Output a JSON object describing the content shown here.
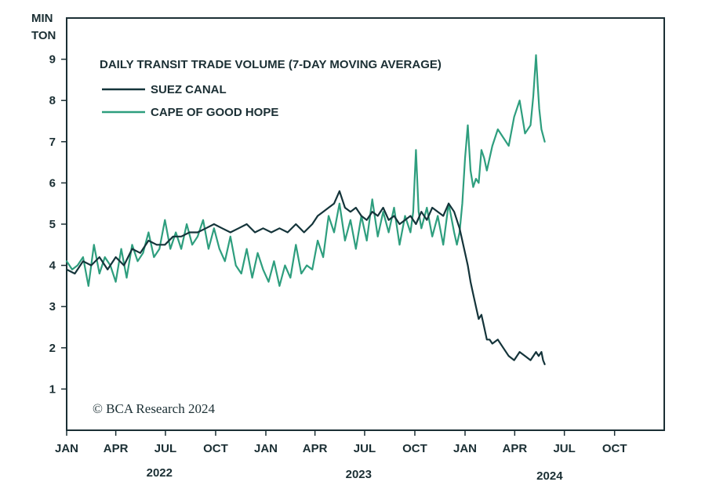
{
  "chart_data": {
    "type": "line",
    "title": "DAILY TRANSIT TRADE VOLUME (7-DAY MOVING AVERAGE)",
    "ylabel": "MIN TON",
    "ylabel_lines": [
      "MIN",
      "TON"
    ],
    "ylim": [
      0,
      10
    ],
    "yticks": [
      1,
      2,
      3,
      4,
      5,
      6,
      7,
      8,
      9
    ],
    "xlim_days": [
      0,
      1095
    ],
    "x_ticks": [
      {
        "label": "JAN",
        "day": 0
      },
      {
        "label": "APR",
        "day": 90
      },
      {
        "label": "JUL",
        "day": 181
      },
      {
        "label": "OCT",
        "day": 273
      },
      {
        "label": "JAN",
        "day": 365
      },
      {
        "label": "APR",
        "day": 455
      },
      {
        "label": "JUL",
        "day": 546
      },
      {
        "label": "OCT",
        "day": 638
      },
      {
        "label": "JAN",
        "day": 730
      },
      {
        "label": "APR",
        "day": 821
      },
      {
        "label": "JUL",
        "day": 912
      },
      {
        "label": "OCT",
        "day": 1004
      }
    ],
    "years": [
      {
        "label": "2022",
        "day": 170
      },
      {
        "label": "2023",
        "day": 535
      },
      {
        "label": "2024",
        "day": 885
      }
    ],
    "legend": {
      "placement": "top-left"
    },
    "copyright": "© BCA Research 2024",
    "series": [
      {
        "name": "SUEZ CANAL",
        "color": "#14343a",
        "x": [
          0,
          15,
          30,
          45,
          60,
          75,
          90,
          105,
          120,
          135,
          150,
          165,
          180,
          195,
          210,
          225,
          240,
          255,
          270,
          285,
          300,
          315,
          330,
          345,
          360,
          375,
          390,
          405,
          420,
          435,
          450,
          460,
          470,
          480,
          490,
          500,
          510,
          520,
          530,
          540,
          550,
          560,
          570,
          580,
          590,
          600,
          610,
          620,
          630,
          640,
          650,
          660,
          670,
          680,
          690,
          700,
          710,
          720,
          725,
          730,
          735,
          740,
          745,
          750,
          755,
          760,
          765,
          770,
          775,
          780,
          790,
          800,
          810,
          820,
          830,
          840,
          850,
          860,
          865,
          870,
          873,
          876
        ],
        "values": [
          3.9,
          3.8,
          4.1,
          4.0,
          4.2,
          3.9,
          4.2,
          4.0,
          4.4,
          4.3,
          4.6,
          4.5,
          4.5,
          4.7,
          4.7,
          4.8,
          4.8,
          4.9,
          5.0,
          4.9,
          4.8,
          4.9,
          5.0,
          4.8,
          4.9,
          4.8,
          4.9,
          4.8,
          5.0,
          4.8,
          5.0,
          5.2,
          5.3,
          5.4,
          5.5,
          5.8,
          5.4,
          5.3,
          5.4,
          5.2,
          5.1,
          5.3,
          5.2,
          5.4,
          5.1,
          5.2,
          5.0,
          5.1,
          5.2,
          5.0,
          5.3,
          5.1,
          5.4,
          5.3,
          5.2,
          5.5,
          5.3,
          4.9,
          4.6,
          4.3,
          4.0,
          3.6,
          3.3,
          3.0,
          2.7,
          2.8,
          2.5,
          2.2,
          2.2,
          2.1,
          2.2,
          2.0,
          1.8,
          1.7,
          1.9,
          1.8,
          1.7,
          1.9,
          1.8,
          1.9,
          1.7,
          1.6
        ]
      },
      {
        "name": "CAPE OF GOOD HOPE",
        "color": "#2e9e7e",
        "x": [
          0,
          10,
          20,
          30,
          40,
          50,
          60,
          70,
          80,
          90,
          100,
          110,
          120,
          130,
          140,
          150,
          160,
          170,
          180,
          190,
          200,
          210,
          220,
          230,
          240,
          250,
          260,
          270,
          280,
          290,
          300,
          310,
          320,
          330,
          340,
          350,
          360,
          370,
          380,
          390,
          400,
          410,
          420,
          430,
          440,
          450,
          460,
          470,
          480,
          490,
          500,
          510,
          520,
          530,
          540,
          550,
          560,
          570,
          580,
          590,
          600,
          610,
          620,
          630,
          635,
          640,
          645,
          650,
          660,
          670,
          680,
          690,
          700,
          710,
          715,
          720,
          725,
          730,
          735,
          740,
          745,
          750,
          755,
          760,
          765,
          770,
          780,
          790,
          800,
          810,
          820,
          830,
          840,
          850,
          855,
          860,
          863,
          866,
          870,
          876
        ],
        "values": [
          4.1,
          3.9,
          4.0,
          4.2,
          3.5,
          4.5,
          3.8,
          4.2,
          4.0,
          3.6,
          4.4,
          3.7,
          4.5,
          4.1,
          4.3,
          4.8,
          4.2,
          4.4,
          5.1,
          4.4,
          4.8,
          4.4,
          5.0,
          4.5,
          4.7,
          5.1,
          4.4,
          4.9,
          4.4,
          4.1,
          4.7,
          4.0,
          3.8,
          4.4,
          3.7,
          4.3,
          3.9,
          3.6,
          4.1,
          3.5,
          4.0,
          3.7,
          4.5,
          3.8,
          4.0,
          3.9,
          4.6,
          4.2,
          5.2,
          4.8,
          5.5,
          4.6,
          5.1,
          4.4,
          5.2,
          4.6,
          5.6,
          4.7,
          5.3,
          4.8,
          5.4,
          4.5,
          5.2,
          4.8,
          5.3,
          6.8,
          5.3,
          4.9,
          5.4,
          4.7,
          5.2,
          4.5,
          5.5,
          4.8,
          4.5,
          4.8,
          5.5,
          6.6,
          7.4,
          6.3,
          5.9,
          6.1,
          6.0,
          6.8,
          6.6,
          6.3,
          6.9,
          7.3,
          7.1,
          6.9,
          7.6,
          8.0,
          7.2,
          7.4,
          8.1,
          9.1,
          8.4,
          7.8,
          7.3,
          7.0
        ]
      }
    ]
  }
}
